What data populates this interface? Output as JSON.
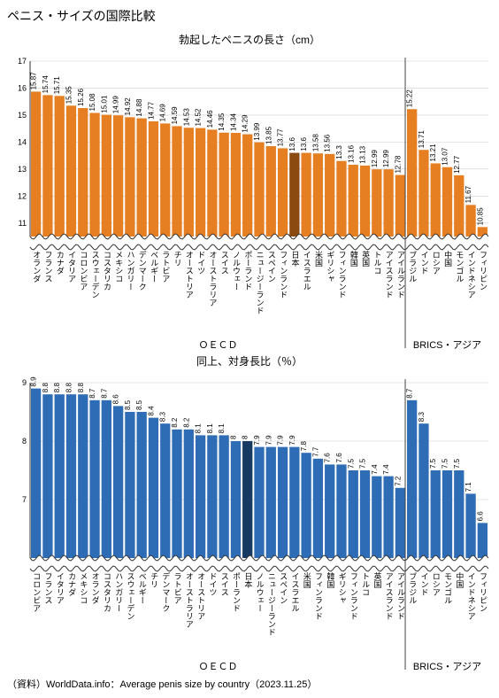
{
  "page_title": "ペニス・サイズの国際比較",
  "source_line": "（資料）WorldData.info：Average penis size by country（2023.11.25）",
  "axis_color": "#333333",
  "grid_color": "#cccccc",
  "text_color": "#000000",
  "background_color": "#ffffff",
  "label_fontsize": 9,
  "value_fontsize": 8,
  "tick_fontsize": 9,
  "group_label_fontsize": 11,
  "separator_color": "#444444",
  "chart1": {
    "title": "勃起したペニスの長さ（cm）",
    "bar_color": "#e67e22",
    "highlight_color": "#8b4a0f",
    "highlight_index": 22,
    "ylim": [
      10.5,
      17
    ],
    "yticks": [
      11,
      12,
      13,
      14,
      15,
      16,
      17
    ],
    "group_split": 32,
    "group_labels": [
      "ＯＥＣＤ",
      "BRICS・アジア"
    ],
    "categories": [
      "オランダ",
      "フランス",
      "カナダ",
      "イタリア",
      "コロンビア",
      "スウェーデン",
      "コスタリカ",
      "メキシコ",
      "ハンガリー",
      "デンマーク",
      "ベルギー",
      "ラトビア",
      "チリ",
      "オーストリア",
      "ドイツ",
      "オーストラリア",
      "スイス",
      "ノルウェー",
      "ポーランド",
      "ニュージーランド",
      "スペイン",
      "フィンランド",
      "日本",
      "イスラエル",
      "米国",
      "ギリシャ",
      "フィンランド",
      "韓国",
      "英国",
      "トルコ",
      "アイスランド",
      "アイルランド",
      "ブラジル",
      "インド",
      "ロシア",
      "中国",
      "モンゴル",
      "インドネシア",
      "フィリピン"
    ],
    "values": [
      15.87,
      15.74,
      15.71,
      15.35,
      15.26,
      15.08,
      15.01,
      14.99,
      14.92,
      14.88,
      14.77,
      14.69,
      14.59,
      14.53,
      14.52,
      14.46,
      14.35,
      14.34,
      14.29,
      13.99,
      13.85,
      13.77,
      13.6,
      13.6,
      13.58,
      13.56,
      13.3,
      13.16,
      13.13,
      12.99,
      12.99,
      12.78,
      15.22,
      13.71,
      13.21,
      13.07,
      12.77,
      11.67,
      10.85
    ]
  },
  "chart2": {
    "title": "同上、対身長比（％）",
    "bar_color": "#2e6db5",
    "highlight_color": "#173a63",
    "highlight_index": 18,
    "ylim": [
      6,
      9
    ],
    "yticks": [
      7,
      8,
      9
    ],
    "group_split": 32,
    "group_labels": [
      "ＯＥＣＤ",
      "BRICS・アジア"
    ],
    "categories": [
      "コロンビア",
      "フランス",
      "イタリア",
      "カナダ",
      "メキシコ",
      "オランダ",
      "コスタリカ",
      "ハンガリー",
      "スウェーデン",
      "ベルギー",
      "チリ",
      "デンマーク",
      "ラトビア",
      "オーストラリア",
      "オーストリア",
      "ドイツ",
      "スイス",
      "ポーランド",
      "日本",
      "ノルウェー",
      "ニュージーランド",
      "スペイン",
      "イスラエル",
      "米国",
      "フィンランド",
      "韓国",
      "ギリシャ",
      "フィンランド",
      "トルコ",
      "英国",
      "アイスランド",
      "アイルランド",
      "ブラジル",
      "インド",
      "ロシア",
      "モンゴル",
      "中国",
      "インドネシア",
      "フィリピン"
    ],
    "values": [
      8.9,
      8.8,
      8.8,
      8.8,
      8.8,
      8.7,
      8.7,
      8.6,
      8.5,
      8.5,
      8.4,
      8.3,
      8.2,
      8.2,
      8.1,
      8.1,
      8.1,
      8.0,
      8.0,
      7.9,
      7.9,
      7.9,
      7.9,
      7.8,
      7.7,
      7.6,
      7.6,
      7.5,
      7.5,
      7.4,
      7.4,
      7.2,
      8.7,
      8.3,
      7.5,
      7.5,
      7.5,
      7.1,
      6.6
    ]
  }
}
